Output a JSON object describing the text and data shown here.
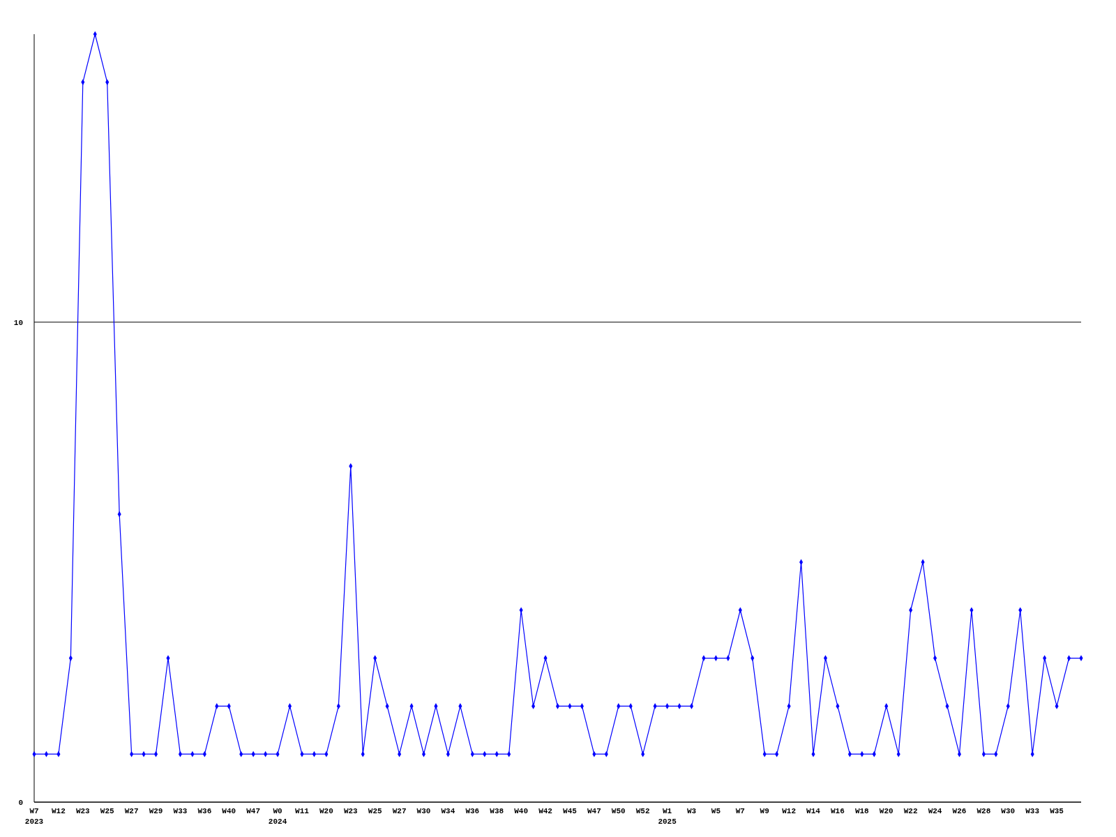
{
  "chart_data": {
    "type": "line",
    "categories": [
      "W7\n2023",
      null,
      "W12",
      null,
      "W23",
      null,
      "W25",
      null,
      "W27",
      null,
      "W29",
      null,
      "W33",
      null,
      "W36",
      null,
      "W40",
      null,
      "W47",
      null,
      "W0\n2024",
      null,
      "W11",
      null,
      "W20",
      null,
      "W23",
      null,
      "W25",
      null,
      "W27",
      null,
      "W30",
      null,
      "W34",
      null,
      "W36",
      null,
      "W38",
      null,
      "W40",
      null,
      "W42",
      null,
      "W45",
      null,
      "W47",
      null,
      "W50",
      null,
      "W52",
      null,
      "W1\n2025",
      null,
      "W3",
      null,
      "W5",
      null,
      "W7",
      null,
      "W9",
      null,
      "W12",
      null,
      "W14",
      null,
      "W16",
      null,
      "W18",
      null,
      "W20",
      null,
      "W22",
      null,
      "W24",
      null,
      "W26",
      null,
      "W28",
      null,
      "W30",
      null,
      "W33",
      null,
      "W35",
      null,
      null
    ],
    "values": [
      1,
      1,
      1,
      3,
      15,
      16,
      15,
      6,
      1,
      1,
      1,
      3,
      1,
      1,
      1,
      2,
      2,
      1,
      1,
      1,
      1,
      2,
      1,
      1,
      1,
      2,
      7,
      1,
      3,
      2,
      1,
      2,
      1,
      2,
      1,
      2,
      1,
      1,
      1,
      1,
      4,
      2,
      3,
      2,
      2,
      2,
      1,
      1,
      2,
      2,
      1,
      2,
      2,
      2,
      2,
      3,
      3,
      3,
      4,
      3,
      1,
      1,
      2,
      5,
      1,
      3,
      2,
      1,
      1,
      1,
      2,
      1,
      4,
      5,
      3,
      2,
      1,
      4,
      1,
      1,
      2,
      4,
      1,
      3,
      2,
      3,
      3
    ],
    "color": "#0000ff",
    "marker": "diamond",
    "line_style": "solid",
    "ylim": [
      0,
      16
    ],
    "yticks": [
      0,
      10
    ],
    "grid": "y"
  }
}
